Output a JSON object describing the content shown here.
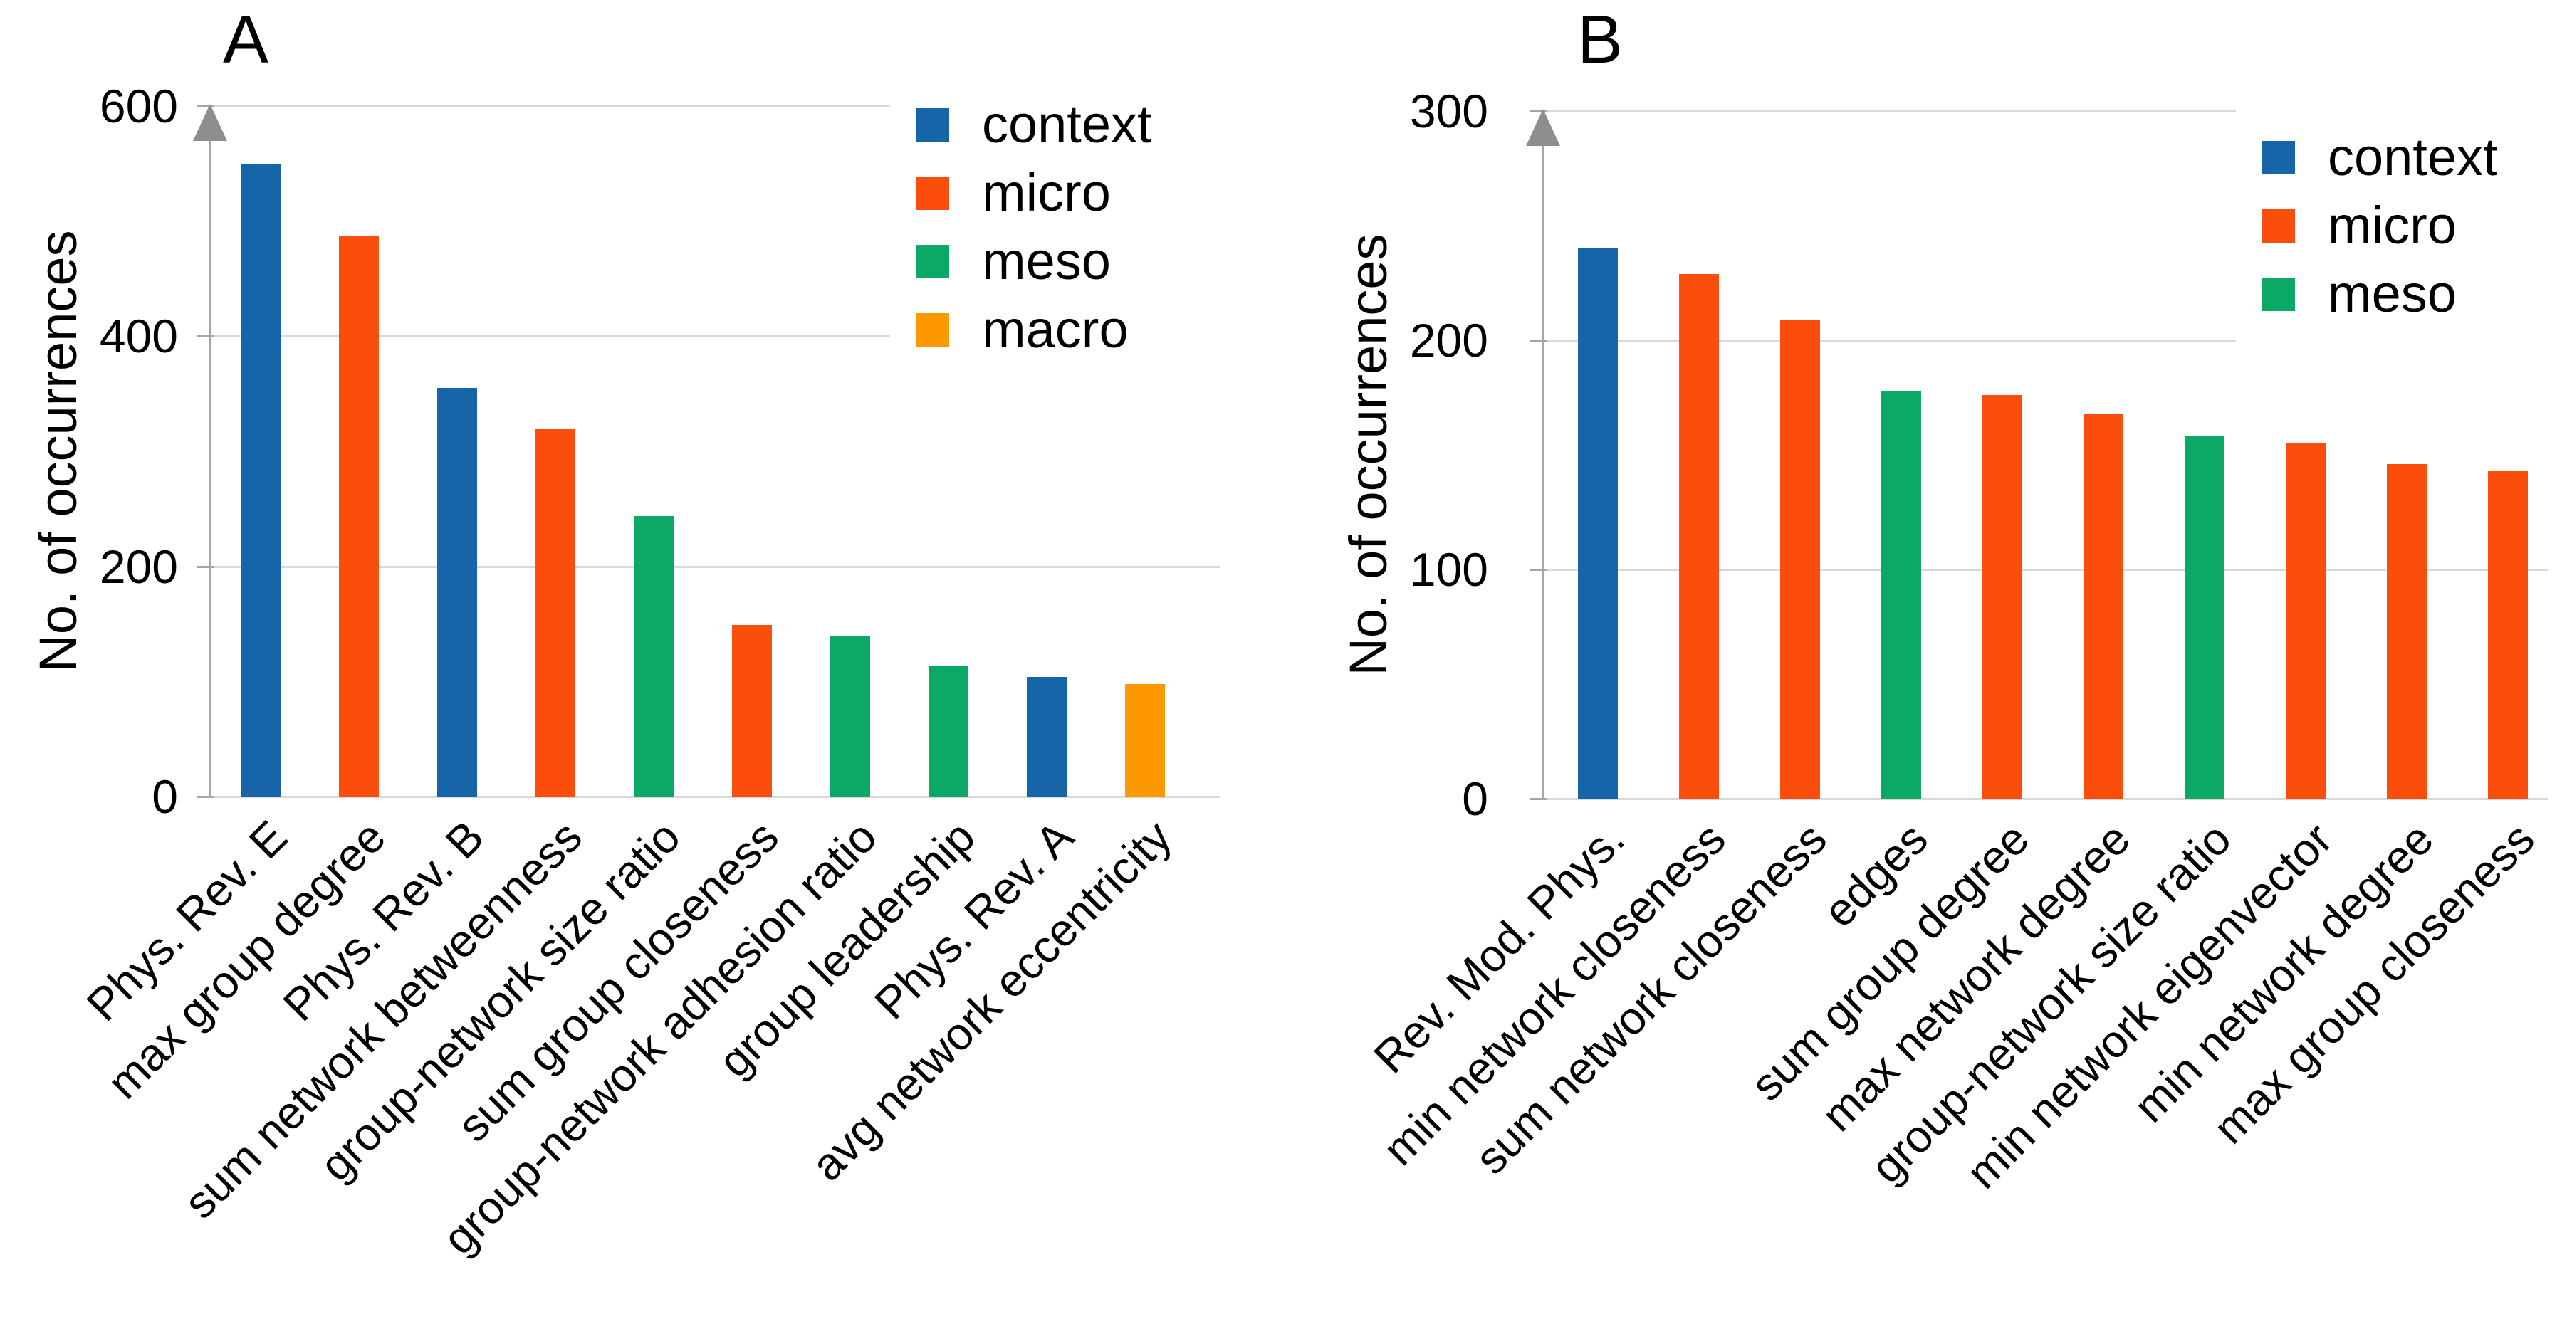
{
  "figure_ylabel": "No. of occurrences",
  "category_colors": {
    "context": "#1565A8",
    "micro": "#FB4D0C",
    "meso": "#0CA966",
    "macro": "#FD9800"
  },
  "chart_data": [
    {
      "type": "bar",
      "panel_label": "A",
      "title": "",
      "xlabel": "",
      "ylabel": "No. of occurrences",
      "ylim": [
        0,
        600
      ],
      "yticks": [
        600,
        400,
        200,
        0
      ],
      "grid": "horizontal",
      "legend_position": "top-right-inside",
      "legend": [
        {
          "name": "context",
          "color": "#1565A8"
        },
        {
          "name": "micro",
          "color": "#FB4D0C"
        },
        {
          "name": "meso",
          "color": "#0CA966"
        },
        {
          "name": "macro",
          "color": "#FD9800"
        }
      ],
      "categories": [
        "Phys. Rev. E",
        "max group degree",
        "Phys. Rev. B",
        "sum network betweenness",
        "group-network size ratio",
        "sum group closeness",
        "group-network adhesion ratio",
        "group leadership",
        "Phys. Rev. A",
        "avg network eccentricity"
      ],
      "values": [
        550,
        487,
        355,
        319,
        244,
        149,
        140,
        114,
        104,
        98
      ],
      "groups": [
        "context",
        "micro",
        "context",
        "micro",
        "meso",
        "micro",
        "meso",
        "meso",
        "context",
        "macro"
      ]
    },
    {
      "type": "bar",
      "panel_label": "B",
      "title": "",
      "xlabel": "",
      "ylabel": "No. of occurrences",
      "ylim": [
        0,
        300
      ],
      "yticks": [
        300,
        200,
        100,
        0
      ],
      "grid": "horizontal",
      "legend_position": "top-right-inside",
      "legend": [
        {
          "name": "context",
          "color": "#1565A8"
        },
        {
          "name": "micro",
          "color": "#FB4D0C"
        },
        {
          "name": "meso",
          "color": "#0CA966"
        }
      ],
      "categories": [
        "Rev. Mod. Phys.",
        "min network closeness",
        "sum network closeness",
        "edges",
        "sum group degree",
        "max network degree",
        "group-network size ratio",
        "min network eigenvector",
        "min network degree",
        "max group closeness"
      ],
      "values": [
        240,
        229,
        209,
        178,
        176,
        168,
        158,
        155,
        146,
        143
      ],
      "groups": [
        "context",
        "micro",
        "micro",
        "meso",
        "micro",
        "micro",
        "meso",
        "micro",
        "micro",
        "micro"
      ]
    }
  ]
}
